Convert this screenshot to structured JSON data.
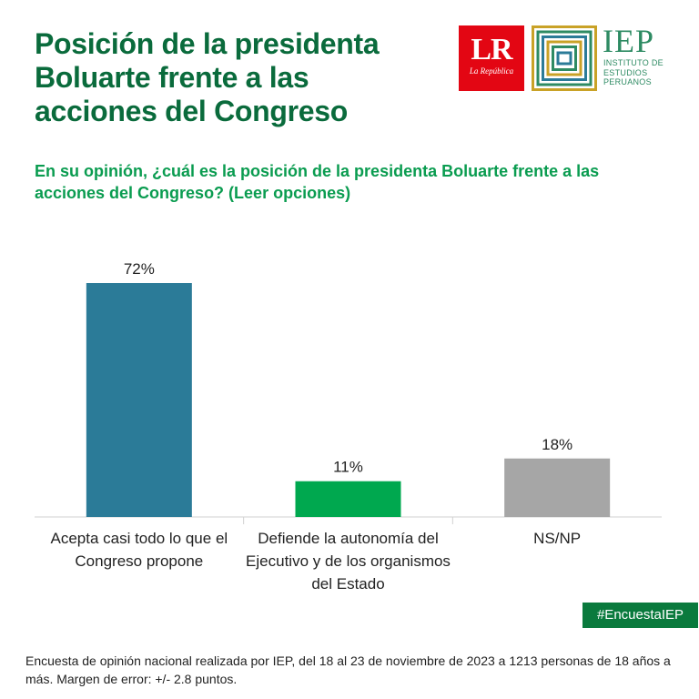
{
  "header": {
    "title": "Posición de la presidenta Boluarte frente a las acciones del Congreso",
    "lr_logo": {
      "main": "LR",
      "sub": "La República"
    },
    "iep_logo": {
      "word": "IEP",
      "tagline": "INSTITUTO DE ESTUDIOS PERUANOS"
    }
  },
  "question": "En su opinión, ¿cuál es la posición de la presidenta Boluarte frente a las acciones del Congreso? (Leer opciones)",
  "chart_data": {
    "type": "bar",
    "title": "Posición de la presidenta Boluarte frente a las acciones del Congreso",
    "categories": [
      "Acepta casi todo lo que el Congreso propone",
      "Defiende la autonomía del Ejecutivo y de los organismos del Estado",
      "NS/NP"
    ],
    "values": [
      72,
      11,
      18
    ],
    "value_labels": [
      "72%",
      "11%",
      "18%"
    ],
    "colors": [
      "#2b7b98",
      "#00a84f",
      "#a6a6a6"
    ],
    "xlabel": "",
    "ylabel": "",
    "ylim": [
      0,
      100
    ],
    "grid": false,
    "legend": "none"
  },
  "hashtag": "#EncuestaIEP",
  "footnote": "Encuesta de opinión nacional realizada por IEP, del 18 al 23 de noviembre de 2023 a 1213 personas de 18 años a más. Margen de error: +/- 2.8 puntos.",
  "colors": {
    "title_green": "#0a6b3c",
    "question_green": "#0a9c50",
    "hashtag_bg": "#0a7a3d",
    "lr_red": "#e30613"
  }
}
